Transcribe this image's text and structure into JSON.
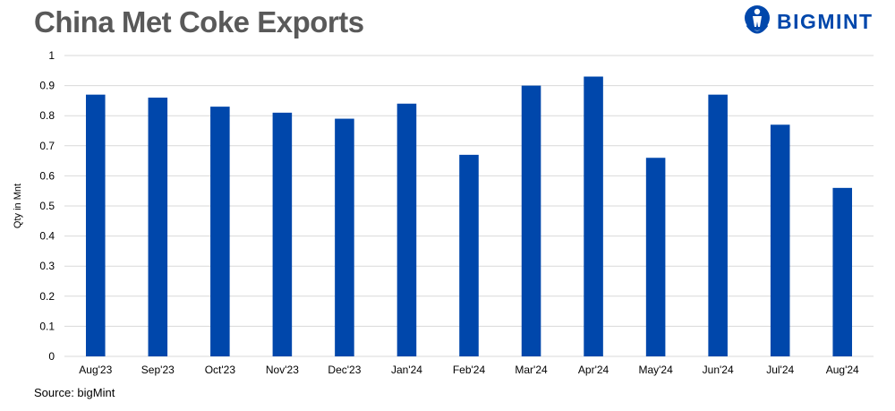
{
  "header": {
    "title": "China Met Coke Exports",
    "brand_name": "BIGMINT",
    "brand_icon": "bigmint-logo-icon"
  },
  "footer": {
    "source": "Source:  bigMint"
  },
  "colors": {
    "bar": "#0047AB",
    "brand": "#0047AB",
    "grid": "#d9d9d9",
    "title": "#595959"
  },
  "chart_data": {
    "type": "bar",
    "title": "China Met Coke Exports",
    "xlabel": "",
    "ylabel": "Qty in Mnt",
    "ylim": [
      0,
      1
    ],
    "yticks": [
      "0",
      "0.1",
      "0.2",
      "0.3",
      "0.4",
      "0.5",
      "0.6",
      "0.7",
      "0.8",
      "0.9",
      "1"
    ],
    "grid": true,
    "legend": "none",
    "categories": [
      "Aug'23",
      "Sep'23",
      "Oct'23",
      "Nov'23",
      "Dec'23",
      "Jan'24",
      "Feb'24",
      "Mar'24",
      "Apr'24",
      "May'24",
      "Jun'24",
      "Jul'24",
      "Aug'24"
    ],
    "values": [
      0.87,
      0.86,
      0.83,
      0.81,
      0.79,
      0.84,
      0.67,
      0.9,
      0.93,
      0.66,
      0.87,
      0.77,
      0.56
    ]
  }
}
